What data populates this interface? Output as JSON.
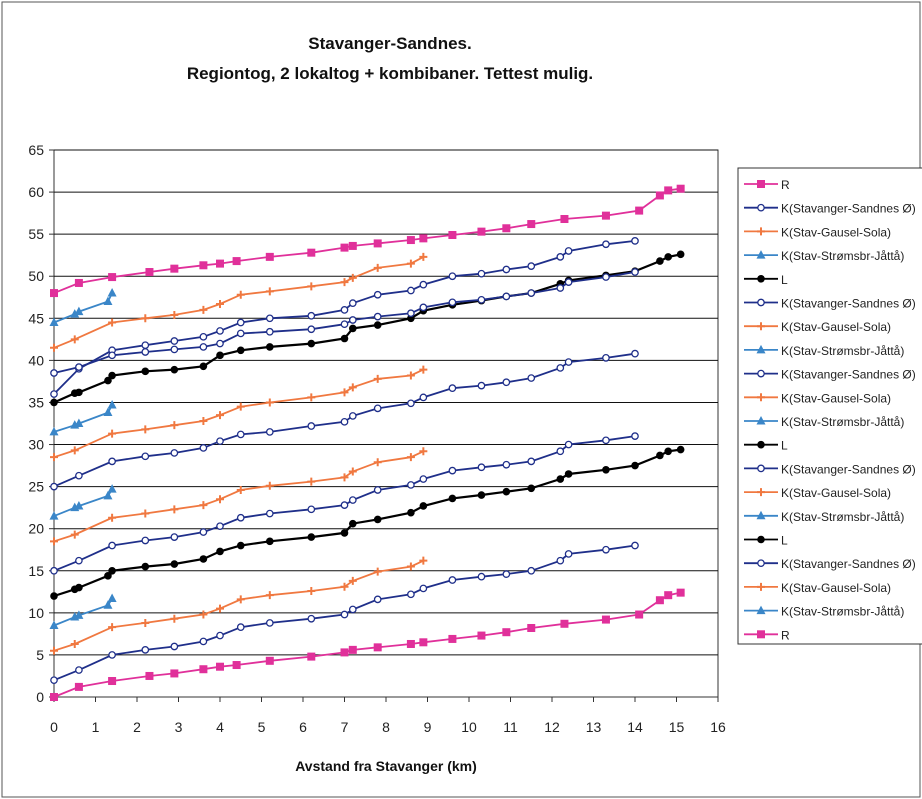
{
  "chart_data": {
    "type": "line",
    "title": "Stavanger-Sandnes.",
    "subtitle": "Regiontog, 2 lokaltog + kombibaner. Tettest mulig.",
    "xlabel": "Avstand fra Stavanger (km)",
    "ylabel": "",
    "xlim": [
      0,
      16
    ],
    "ylim": [
      0,
      65
    ],
    "xticks": [
      "0",
      "1",
      "2",
      "3",
      "4",
      "5",
      "6",
      "7",
      "8",
      "9",
      "10",
      "11",
      "12",
      "13",
      "14",
      "15",
      "16"
    ],
    "yticks": [
      "0",
      "5",
      "10",
      "15",
      "20",
      "25",
      "30",
      "35",
      "40",
      "45",
      "50",
      "55",
      "60",
      "65"
    ],
    "grid": "horizontal",
    "legend_position": "right",
    "colors": {
      "R": "#e0309a",
      "K_SS": "#1f2f8a",
      "K_GS": "#f07840",
      "K_SJ": "#3a86c8",
      "L": "#000000"
    },
    "series": [
      {
        "name": "R",
        "style": "R",
        "x": [
          0,
          0.6,
          1.4,
          2.3,
          2.9,
          3.6,
          4.0,
          4.4,
          5.2,
          6.2,
          7.0,
          7.2,
          7.8,
          8.6,
          8.9,
          9.6,
          10.3,
          10.9,
          11.5,
          12.3,
          13.3,
          14.1,
          14.6,
          14.8,
          15.1
        ],
        "y": [
          48.0,
          49.2,
          49.9,
          50.5,
          50.9,
          51.3,
          51.5,
          51.8,
          52.3,
          52.8,
          53.4,
          53.6,
          53.9,
          54.3,
          54.5,
          54.9,
          55.3,
          55.7,
          56.2,
          56.8,
          57.2,
          57.8,
          59.6,
          60.2,
          60.4
        ]
      },
      {
        "name": "K(Stavanger-Sandnes Ø)",
        "style": "K_SS",
        "x": [
          0,
          0.6,
          1.4,
          2.2,
          2.9,
          3.6,
          4.0,
          4.5,
          5.2,
          6.2,
          7.0,
          7.2,
          7.8,
          8.6,
          8.9,
          9.6,
          10.3,
          10.9,
          11.5,
          12.2,
          12.4,
          13.3,
          14.0
        ],
        "y": [
          36.0,
          39.0,
          41.2,
          41.8,
          42.3,
          42.8,
          43.5,
          44.5,
          45.0,
          45.3,
          46.0,
          46.8,
          47.8,
          48.3,
          49.0,
          50.0,
          50.3,
          50.8,
          51.2,
          52.3,
          53.0,
          53.8,
          54.2
        ]
      },
      {
        "name": "K(Stav-Gausel-Sola)",
        "style": "K_GS",
        "x": [
          0,
          0.5,
          1.4,
          2.2,
          2.9,
          3.6,
          4.0,
          4.5,
          5.2,
          6.2,
          7.0,
          7.2,
          7.8,
          8.6,
          8.9
        ],
        "y": [
          41.5,
          42.5,
          44.5,
          45.0,
          45.4,
          46.0,
          46.7,
          47.8,
          48.2,
          48.8,
          49.3,
          49.8,
          51.0,
          51.5,
          52.3
        ]
      },
      {
        "name": "K(Stav-Strømsbr-Jåttå)",
        "style": "K_SJ",
        "x": [
          0,
          0.5,
          0.6,
          1.3,
          1.4
        ],
        "y": [
          44.5,
          45.5,
          45.8,
          47.0,
          48.0
        ]
      },
      {
        "name": "L",
        "style": "L",
        "x": [
          0,
          0.5,
          0.6,
          1.3,
          1.4,
          2.2,
          2.9,
          3.6,
          4.0,
          4.5,
          5.2,
          6.2,
          7.0,
          7.2,
          7.8,
          8.6,
          8.9,
          9.6,
          10.3,
          10.9,
          11.5,
          12.2,
          12.4,
          13.3,
          14.0,
          14.6,
          14.8,
          15.1
        ],
        "y": [
          35.0,
          36.1,
          36.2,
          37.6,
          38.2,
          38.7,
          38.9,
          39.3,
          40.6,
          41.2,
          41.6,
          42.0,
          42.6,
          43.8,
          44.2,
          45.0,
          45.9,
          46.6,
          47.1,
          47.6,
          48.0,
          49.1,
          49.5,
          50.1,
          50.6,
          51.8,
          52.3,
          52.6
        ]
      },
      {
        "name": "K(Stavanger-Sandnes Ø)",
        "style": "K_SS",
        "x": [
          0,
          0.6,
          1.4,
          2.2,
          2.9,
          3.6,
          4.0,
          4.5,
          5.2,
          6.2,
          7.0,
          7.2,
          7.8,
          8.6,
          8.9,
          9.6,
          10.3,
          10.9,
          11.5,
          12.2,
          12.4,
          13.3,
          14.0
        ],
        "y": [
          38.5,
          39.2,
          40.6,
          41.0,
          41.3,
          41.6,
          42.0,
          43.2,
          43.4,
          43.7,
          44.3,
          44.8,
          45.2,
          45.6,
          46.3,
          46.9,
          47.2,
          47.6,
          48.0,
          48.6,
          49.3,
          49.9,
          50.5
        ]
      },
      {
        "name": "K(Stav-Gausel-Sola)",
        "style": "K_GS",
        "x": [
          0,
          0.5,
          1.4,
          2.2,
          2.9,
          3.6,
          4.0,
          4.5,
          5.2,
          6.2,
          7.0,
          7.2,
          7.8,
          8.6,
          8.9
        ],
        "y": [
          28.5,
          29.3,
          31.3,
          31.8,
          32.3,
          32.8,
          33.5,
          34.5,
          35.0,
          35.6,
          36.2,
          36.8,
          37.8,
          38.2,
          38.9
        ]
      },
      {
        "name": "K(Stav-Strømsbr-Jåttå)",
        "style": "K_SJ",
        "x": [
          0,
          0.5,
          0.6,
          1.3,
          1.4
        ],
        "y": [
          31.5,
          32.3,
          32.5,
          33.8,
          34.7
        ]
      },
      {
        "name": "K(Stavanger-Sandnes Ø)",
        "style": "K_SS",
        "x": [
          0,
          0.6,
          1.4,
          2.2,
          2.9,
          3.6,
          4.0,
          4.5,
          5.2,
          6.2,
          7.0,
          7.2,
          7.8,
          8.6,
          8.9,
          9.6,
          10.3,
          10.9,
          11.5,
          12.2,
          12.4,
          13.3,
          14.0
        ],
        "y": [
          25.0,
          26.3,
          28.0,
          28.6,
          29.0,
          29.6,
          30.4,
          31.2,
          31.5,
          32.2,
          32.7,
          33.4,
          34.3,
          34.9,
          35.6,
          36.7,
          37.0,
          37.4,
          37.9,
          39.1,
          39.8,
          40.3,
          40.8
        ]
      },
      {
        "name": "K(Stav-Gausel-Sola)",
        "style": "K_GS",
        "x": [
          0,
          0.5,
          1.4,
          2.2,
          2.9,
          3.6,
          4.0,
          4.5,
          5.2,
          6.2,
          7.0,
          7.2,
          7.8,
          8.6,
          8.9
        ],
        "y": [
          18.5,
          19.3,
          21.3,
          21.8,
          22.3,
          22.8,
          23.5,
          24.6,
          25.1,
          25.6,
          26.1,
          26.8,
          27.9,
          28.5,
          29.2
        ]
      },
      {
        "name": "K(Stav-Strømsbr-Jåttå)",
        "style": "K_SJ",
        "x": [
          0,
          0.5,
          0.6,
          1.3,
          1.4
        ],
        "y": [
          21.5,
          22.5,
          22.7,
          23.9,
          24.7
        ]
      },
      {
        "name": "L",
        "style": "L",
        "x": [
          0,
          0.5,
          0.6,
          1.3,
          1.4,
          2.2,
          2.9,
          3.6,
          4.0,
          4.5,
          5.2,
          6.2,
          7.0,
          7.2,
          7.8,
          8.6,
          8.9,
          9.6,
          10.3,
          10.9,
          11.5,
          12.2,
          12.4,
          13.3,
          14.0,
          14.6,
          14.8,
          15.1
        ],
        "y": [
          12.0,
          12.8,
          13.0,
          14.4,
          15.0,
          15.5,
          15.8,
          16.4,
          17.3,
          18.0,
          18.5,
          19.0,
          19.5,
          20.6,
          21.1,
          21.9,
          22.7,
          23.6,
          24.0,
          24.4,
          24.8,
          25.9,
          26.5,
          27.0,
          27.5,
          28.7,
          29.2,
          29.4
        ]
      },
      {
        "name": "K(Stavanger-Sandnes Ø)",
        "style": "K_SS",
        "x": [
          0,
          0.6,
          1.4,
          2.2,
          2.9,
          3.6,
          4.0,
          4.5,
          5.2,
          6.2,
          7.0,
          7.2,
          7.8,
          8.6,
          8.9,
          9.6,
          10.3,
          10.9,
          11.5,
          12.2,
          12.4,
          13.3,
          14.0
        ],
        "y": [
          15.0,
          16.2,
          18.0,
          18.6,
          19.0,
          19.6,
          20.3,
          21.3,
          21.8,
          22.3,
          22.8,
          23.4,
          24.6,
          25.2,
          25.9,
          26.9,
          27.3,
          27.6,
          28.0,
          29.2,
          30.0,
          30.5,
          31.0
        ]
      },
      {
        "name": "K(Stav-Gausel-Sola)",
        "style": "K_GS",
        "x": [
          0,
          0.5,
          1.4,
          2.2,
          2.9,
          3.6,
          4.0,
          4.5,
          5.2,
          6.2,
          7.0,
          7.2,
          7.8,
          8.6,
          8.9
        ],
        "y": [
          5.5,
          6.3,
          8.3,
          8.8,
          9.3,
          9.8,
          10.5,
          11.6,
          12.1,
          12.6,
          13.1,
          13.8,
          14.9,
          15.5,
          16.2
        ]
      },
      {
        "name": "K(Stav-Strømsbr-Jåttå)",
        "style": "K_SJ",
        "x": [
          0,
          0.5,
          0.6,
          1.3,
          1.4
        ],
        "y": [
          8.5,
          9.5,
          9.7,
          10.9,
          11.7
        ]
      },
      {
        "name": "L",
        "style": "L",
        "x": [],
        "y": []
      },
      {
        "name": "K(Stavanger-Sandnes Ø)",
        "style": "K_SS",
        "x": [
          0,
          0.6,
          1.4,
          2.2,
          2.9,
          3.6,
          4.0,
          4.5,
          5.2,
          6.2,
          7.0,
          7.2,
          7.8,
          8.6,
          8.9,
          9.6,
          10.3,
          10.9,
          11.5,
          12.2,
          12.4,
          13.3,
          14.0
        ],
        "y": [
          2.0,
          3.2,
          5.0,
          5.6,
          6.0,
          6.6,
          7.3,
          8.3,
          8.8,
          9.3,
          9.8,
          10.4,
          11.6,
          12.2,
          12.9,
          13.9,
          14.3,
          14.6,
          15.0,
          16.2,
          17.0,
          17.5,
          18.0
        ]
      },
      {
        "name": "K(Stav-Gausel-Sola)",
        "style": "K_GS",
        "x": [],
        "y": []
      },
      {
        "name": "K(Stav-Strømsbr-Jåttå)",
        "style": "K_SJ",
        "x": [],
        "y": []
      },
      {
        "name": "R",
        "style": "R",
        "x": [
          0,
          0.6,
          1.4,
          2.3,
          2.9,
          3.6,
          4.0,
          4.4,
          5.2,
          6.2,
          7.0,
          7.2,
          7.8,
          8.6,
          8.9,
          9.6,
          10.3,
          10.9,
          11.5,
          12.3,
          13.3,
          14.1,
          14.6,
          14.8,
          15.1
        ],
        "y": [
          0.0,
          1.2,
          1.9,
          2.5,
          2.8,
          3.3,
          3.6,
          3.8,
          4.3,
          4.8,
          5.3,
          5.6,
          5.9,
          6.3,
          6.5,
          6.9,
          7.3,
          7.7,
          8.2,
          8.7,
          9.2,
          9.8,
          11.5,
          12.1,
          12.4
        ]
      }
    ]
  }
}
